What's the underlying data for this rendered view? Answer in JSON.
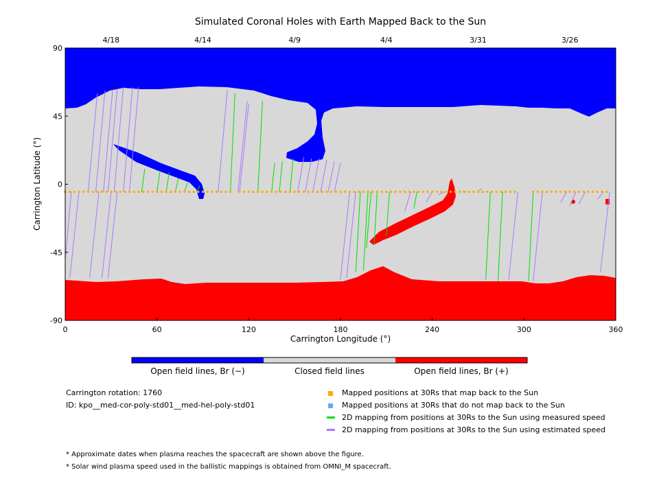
{
  "chart_data": {
    "type": "map",
    "title": "Simulated Coronal Holes with Earth Mapped Back to the Sun",
    "xlabel": "Carrington Longitude (°)",
    "ylabel": "Carrington Latitude (°)",
    "xlim": [
      0,
      360
    ],
    "ylim": [
      -90,
      90
    ],
    "xticks": [
      "0",
      "60",
      "120",
      "180",
      "240",
      "300",
      "360"
    ],
    "yticks": [
      "90",
      "45",
      "0",
      "-45",
      "-90"
    ],
    "top_dates": [
      {
        "lon": 30,
        "label": "4/18"
      },
      {
        "lon": 90,
        "label": "4/14"
      },
      {
        "lon": 150,
        "label": "4/9"
      },
      {
        "lon": 210,
        "label": "4/4"
      },
      {
        "lon": 270,
        "label": "3/31"
      },
      {
        "lon": 330,
        "label": "3/26"
      }
    ],
    "colors": {
      "open_negative": "#0000ff",
      "closed": "#d8d8d8",
      "open_positive": "#ff0000",
      "mapped_ok": "#ffaa00",
      "mapped_fail": "#66aaff",
      "measured_speed": "#00dd00",
      "estimated_speed": "#aa77ff"
    },
    "colorbar": [
      {
        "label": "Open field lines, Br (−)"
      },
      {
        "label": "Closed field lines"
      },
      {
        "label": "Open field lines, Br (+)"
      }
    ],
    "legend": [
      {
        "label": "Mapped positions at 30Rs that map back to the Sun",
        "icon": "square",
        "color": "#ffaa00"
      },
      {
        "label": "Mapped positions at 30Rs that do not map back to the Sun",
        "icon": "square",
        "color": "#66aaff"
      },
      {
        "label": "2D mapping from positions at 30Rs to the Sun using measured speed",
        "icon": "line",
        "color": "#00dd00"
      },
      {
        "label": "2D mapping from positions at 30Rs to the Sun using estimated speed",
        "icon": "line",
        "color": "#aa77ff"
      }
    ],
    "mapped_point_lat": -5,
    "mappings": [
      {
        "from": 4,
        "to": -50,
        "kind": "estimated"
      },
      {
        "from": 9,
        "to": -62,
        "kind": "estimated"
      },
      {
        "from": 15,
        "to": 60,
        "kind": "estimated"
      },
      {
        "from": 20,
        "to": 62,
        "kind": "estimated"
      },
      {
        "from": 25,
        "to": 62,
        "kind": "estimated"
      },
      {
        "from": 28,
        "to": 63,
        "kind": "estimated"
      },
      {
        "from": 32,
        "to": 64,
        "kind": "estimated"
      },
      {
        "from": 22,
        "to": -62,
        "kind": "estimated"
      },
      {
        "from": 30,
        "to": -62,
        "kind": "estimated"
      },
      {
        "from": 34,
        "to": -62,
        "kind": "estimated"
      },
      {
        "from": 38,
        "to": 64,
        "kind": "estimated"
      },
      {
        "from": 42,
        "to": 64,
        "kind": "estimated"
      },
      {
        "from": 50,
        "to": 10,
        "kind": "measured"
      },
      {
        "from": 60,
        "to": 9,
        "kind": "measured"
      },
      {
        "from": 66,
        "to": 8,
        "kind": "measured"
      },
      {
        "from": 72,
        "to": 4,
        "kind": "measured"
      },
      {
        "from": 78,
        "to": 1,
        "kind": "measured"
      },
      {
        "from": 86,
        "to": -1,
        "kind": "measured"
      },
      {
        "from": 100,
        "to": 62,
        "kind": "estimated"
      },
      {
        "from": 108,
        "to": 60,
        "kind": "measured"
      },
      {
        "from": 113,
        "to": 55,
        "kind": "estimated"
      },
      {
        "from": 114,
        "to": 53,
        "kind": "estimated"
      },
      {
        "from": 126,
        "to": 55,
        "kind": "measured"
      },
      {
        "from": 135,
        "to": 14,
        "kind": "measured"
      },
      {
        "from": 140,
        "to": 15,
        "kind": "measured"
      },
      {
        "from": 147,
        "to": 17,
        "kind": "measured"
      },
      {
        "from": 152,
        "to": 18,
        "kind": "estimated"
      },
      {
        "from": 157,
        "to": 17,
        "kind": "estimated"
      },
      {
        "from": 162,
        "to": 17,
        "kind": "estimated"
      },
      {
        "from": 167,
        "to": 16,
        "kind": "estimated"
      },
      {
        "from": 172,
        "to": 15,
        "kind": "estimated"
      },
      {
        "from": 176,
        "to": 14,
        "kind": "estimated"
      },
      {
        "from": 186,
        "to": -63,
        "kind": "estimated"
      },
      {
        "from": 190,
        "to": -62,
        "kind": "estimated"
      },
      {
        "from": 193,
        "to": -58,
        "kind": "measured"
      },
      {
        "from": 198,
        "to": -57,
        "kind": "measured"
      },
      {
        "from": 200,
        "to": -42,
        "kind": "measured"
      },
      {
        "from": 204,
        "to": -40,
        "kind": "measured"
      },
      {
        "from": 212,
        "to": -34,
        "kind": "measured"
      },
      {
        "from": 226,
        "to": -18,
        "kind": "estimated"
      },
      {
        "from": 230,
        "to": -16,
        "kind": "measured"
      },
      {
        "from": 240,
        "to": -12,
        "kind": "estimated"
      },
      {
        "from": 248,
        "to": -7,
        "kind": "estimated"
      },
      {
        "from": 262,
        "to": -5,
        "kind": "measured"
      },
      {
        "from": 270,
        "to": -3,
        "kind": "measured"
      },
      {
        "from": 278,
        "to": -63,
        "kind": "measured"
      },
      {
        "from": 286,
        "to": -64,
        "kind": "measured"
      },
      {
        "from": 296,
        "to": -63,
        "kind": "estimated"
      },
      {
        "from": 306,
        "to": -64,
        "kind": "measured"
      },
      {
        "from": 312,
        "to": -64,
        "kind": "estimated"
      },
      {
        "from": 328,
        "to": -12,
        "kind": "estimated"
      },
      {
        "from": 334,
        "to": -14,
        "kind": "estimated"
      },
      {
        "from": 340,
        "to": -13,
        "kind": "estimated"
      },
      {
        "from": 352,
        "to": -10,
        "kind": "estimated"
      },
      {
        "from": 356,
        "to": -58,
        "kind": "estimated"
      }
    ]
  },
  "info": {
    "rotation": "Carrington rotation: 1760",
    "id": "ID: kpo__med-cor-poly-std01__med-hel-poly-std01"
  },
  "footnotes": [
    "* Approximate dates when plasma reaches the spacecraft are shown above the figure.",
    "* Solar wind plasma speed used in the ballistic mappings is obtained from OMNI_M spacecraft."
  ]
}
